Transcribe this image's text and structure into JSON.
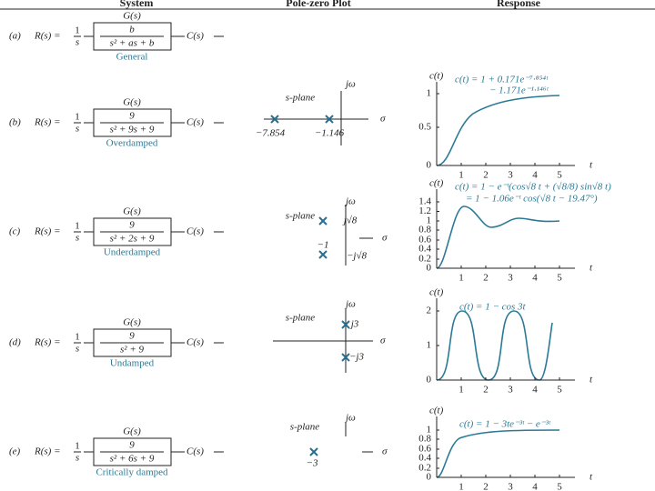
{
  "header": {
    "system": "System",
    "pole_zero_plot": "Pole-zero Plot",
    "response": "Response"
  },
  "rows": [
    {
      "label": "(a)",
      "input": "R(s) =",
      "input_num": "1",
      "input_den": "s",
      "block": "G(s)",
      "numerator": "b",
      "denominator": "s² + as + b",
      "output": "C(s)",
      "caption": "General"
    },
    {
      "label": "(b)",
      "input": "R(s) =",
      "input_num": "1",
      "input_den": "s",
      "block": "G(s)",
      "numerator": "9",
      "denominator": "s² + 9s + 9",
      "output": "C(s)",
      "caption": "Overdamped",
      "pole_zero": {
        "axis_v": "jω",
        "plane": "s-plane",
        "axis_h": "σ",
        "labels": [
          "−7.854",
          "−1.146"
        ]
      },
      "response": {
        "axis_v": "c(t)",
        "axis_h": "t",
        "formula": [
          "c(t) = 1 + 0.171e⁻⁷·⁸⁵⁴ᵗ",
          "− 1.171e⁻¹·¹⁴⁶ᵗ"
        ],
        "yticks": [
          "1",
          "0.5",
          "0"
        ],
        "xticks": [
          "1",
          "2",
          "3",
          "4",
          "5"
        ]
      }
    },
    {
      "label": "(c)",
      "input": "R(s) =",
      "input_num": "1",
      "input_den": "s",
      "block": "G(s)",
      "numerator": "9",
      "denominator": "s² + 2s + 9",
      "output": "C(s)",
      "caption": "Underdamped",
      "pole_zero": {
        "axis_v": "jω",
        "plane": "s-plane",
        "axis_h": "σ",
        "labels": [
          "j√8",
          "−1",
          "−j√8"
        ]
      },
      "response": {
        "axis_v": "c(t)",
        "axis_h": "t",
        "formula": [
          "c(t) = 1 − e⁻ᵗ(cos√8 t + (√8/8) sin√8 t)",
          "= 1 − 1.06e⁻ᵗ cos(√8 t − 19.47°)"
        ],
        "yticks": [
          "1.4",
          "1.2",
          "1",
          "0.8",
          "0.6",
          "0.4",
          "0.2",
          "0"
        ],
        "xticks": [
          "1",
          "2",
          "3",
          "4",
          "5"
        ]
      }
    },
    {
      "label": "(d)",
      "input": "R(s) =",
      "input_num": "1",
      "input_den": "s",
      "block": "G(s)",
      "numerator": "9",
      "denominator": "s² + 9",
      "output": "C(s)",
      "caption": "Undamped",
      "pole_zero": {
        "axis_v": "jω",
        "plane": "s-plane",
        "axis_h": "σ",
        "labels": [
          "j3",
          "−j3"
        ]
      },
      "response": {
        "axis_v": "c(t)",
        "axis_h": "t",
        "formula": [
          "c(t) = 1 − cos 3t"
        ],
        "yticks": [
          "2",
          "1",
          "0"
        ],
        "xticks": [
          "1",
          "2",
          "3",
          "4",
          "5"
        ]
      }
    },
    {
      "label": "(e)",
      "input": "R(s) =",
      "input_num": "1",
      "input_den": "s",
      "block": "G(s)",
      "numerator": "9",
      "denominator": "s² + 6s + 9",
      "output": "C(s)",
      "caption": "Critically damped",
      "pole_zero": {
        "axis_v": "jω",
        "plane": "s-plane",
        "axis_h": "σ",
        "labels": [
          "−3"
        ]
      },
      "response": {
        "axis_v": "c(t)",
        "axis_h": "t",
        "formula": [
          "c(t) = 1 − 3te⁻³ᵗ − e⁻³ᵗ"
        ],
        "yticks": [
          "1",
          "0.8",
          "0.6",
          "0.4",
          "0.2",
          "0"
        ],
        "xticks": [
          "1",
          "2",
          "3",
          "4",
          "5"
        ]
      }
    }
  ]
}
